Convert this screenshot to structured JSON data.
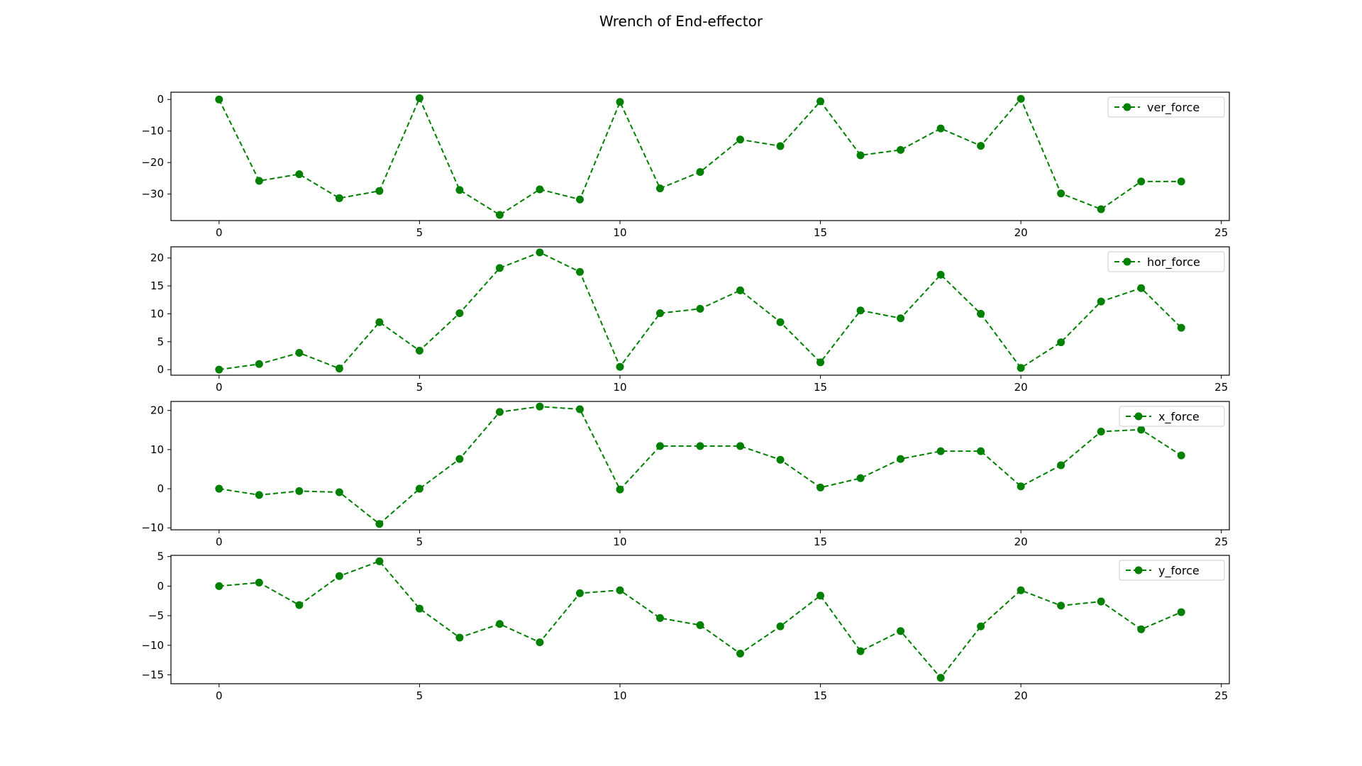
{
  "figure": {
    "title": "Wrench of End-effector",
    "line_color": "#008000"
  },
  "chart_data": [
    {
      "type": "line",
      "title": "",
      "xlabel": "",
      "ylabel": "",
      "xlim": [
        -1.2,
        25.2
      ],
      "ylim": [
        -38.4,
        2.3
      ],
      "xticks": [
        0,
        5,
        10,
        15,
        20,
        25
      ],
      "yticks": [
        0,
        -10,
        -20,
        -30
      ],
      "legend": "top-right",
      "grid": false,
      "series": [
        {
          "name": "ver_force",
          "style": "dashed line with circle markers",
          "x": [
            0,
            1,
            2,
            3,
            4,
            5,
            6,
            7,
            8,
            9,
            10,
            11,
            12,
            13,
            14,
            15,
            16,
            17,
            18,
            19,
            20,
            21,
            22,
            23,
            24
          ],
          "y": [
            0,
            -25.8,
            -23.7,
            -31.3,
            -29,
            0.4,
            -28.7,
            -36.6,
            -28.5,
            -31.7,
            -0.8,
            -28.2,
            -23,
            -12.7,
            -14.8,
            -0.6,
            -17.7,
            -16,
            -9.2,
            -14.7,
            0.2,
            -29.8,
            -34.8,
            -26,
            -26
          ]
        }
      ]
    },
    {
      "type": "line",
      "title": "",
      "xlabel": "",
      "ylabel": "",
      "xlim": [
        -1.2,
        25.2
      ],
      "ylim": [
        -1,
        22
      ],
      "xticks": [
        0,
        5,
        10,
        15,
        20,
        25
      ],
      "yticks": [
        0,
        5,
        10,
        15,
        20
      ],
      "legend": "top-right",
      "grid": false,
      "series": [
        {
          "name": "hor_force",
          "style": "dashed line with circle markers",
          "x": [
            0,
            1,
            2,
            3,
            4,
            5,
            6,
            7,
            8,
            9,
            10,
            11,
            12,
            13,
            14,
            15,
            16,
            17,
            18,
            19,
            20,
            21,
            22,
            23,
            24
          ],
          "y": [
            0,
            1,
            3,
            0.2,
            8.5,
            3.4,
            10.1,
            18.2,
            21,
            17.5,
            0.5,
            10.1,
            10.9,
            14.2,
            8.5,
            1.3,
            10.6,
            9.2,
            17,
            10,
            0.3,
            4.9,
            12.2,
            14.6,
            7.5
          ]
        }
      ]
    },
    {
      "type": "line",
      "title": "",
      "xlabel": "",
      "ylabel": "",
      "xlim": [
        -1.2,
        25.2
      ],
      "ylim": [
        -10.5,
        22.3
      ],
      "xticks": [
        0,
        5,
        10,
        15,
        20,
        25
      ],
      "yticks": [
        20,
        10,
        0,
        -10
      ],
      "legend": "top-right",
      "grid": false,
      "series": [
        {
          "name": "x_force",
          "style": "dashed line with circle markers",
          "x": [
            0,
            1,
            2,
            3,
            4,
            5,
            6,
            7,
            8,
            9,
            10,
            11,
            12,
            13,
            14,
            15,
            16,
            17,
            18,
            19,
            20,
            21,
            22,
            23,
            24
          ],
          "y": [
            0,
            -1.6,
            -0.6,
            -0.9,
            -9,
            0,
            7.6,
            19.6,
            21,
            20.3,
            -0.2,
            10.9,
            10.9,
            10.9,
            7.4,
            0.3,
            2.7,
            7.6,
            9.6,
            9.6,
            0.6,
            6,
            14.6,
            15.1,
            8.5
          ]
        }
      ]
    },
    {
      "type": "line",
      "title": "",
      "xlabel": "",
      "ylabel": "",
      "xlim": [
        -1.2,
        25.2
      ],
      "ylim": [
        -16.5,
        5.2
      ],
      "xticks": [
        0,
        5,
        10,
        15,
        20,
        25
      ],
      "yticks": [
        5,
        0,
        -5,
        -10,
        -15
      ],
      "legend": "top-right",
      "grid": false,
      "series": [
        {
          "name": "y_force",
          "style": "dashed line with circle markers",
          "x": [
            0,
            1,
            2,
            3,
            4,
            5,
            6,
            7,
            8,
            9,
            10,
            11,
            12,
            13,
            14,
            15,
            16,
            17,
            18,
            19,
            20,
            21,
            22,
            23,
            24
          ],
          "y": [
            0,
            0.6,
            -3.2,
            1.7,
            4.2,
            -3.8,
            -8.7,
            -6.4,
            -9.5,
            -1.2,
            -0.7,
            -5.4,
            -6.6,
            -11.4,
            -6.8,
            -1.6,
            -11,
            -7.6,
            -15.5,
            -6.8,
            -0.7,
            -3.3,
            -2.6,
            -7.3,
            -4.4
          ]
        }
      ]
    }
  ]
}
